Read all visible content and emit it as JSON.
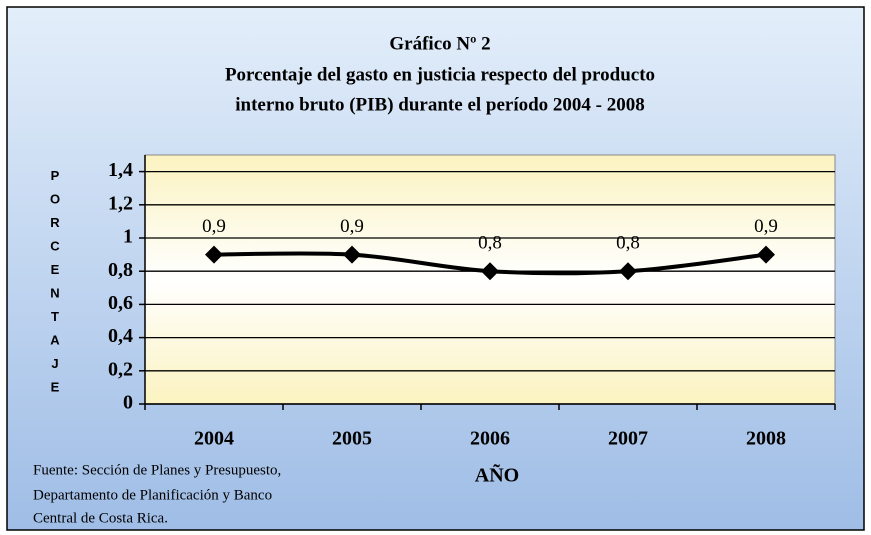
{
  "chart_data": {
    "type": "line",
    "title": "Gráfico Nº 2",
    "subtitle": [
      "Porcentaje del gasto en justicia respecto del producto",
      "interno bruto (PIB) durante el período 2004 - 2008"
    ],
    "y_label": "PORCENTAJE",
    "x_label": "AÑO",
    "categories": [
      "2004",
      "2005",
      "2006",
      "2007",
      "2008"
    ],
    "series": [
      {
        "name": "PIB",
        "color": "#000000",
        "values": [
          0.9,
          0.9,
          0.8,
          0.8,
          0.9
        ],
        "value_labels": [
          "0,9",
          "0,9",
          "0,8",
          "0,8",
          "0,9"
        ]
      }
    ],
    "ylim": [
      0,
      1.5
    ],
    "yticks": [
      0,
      {
        "value": 0.2,
        "label": "0,2"
      },
      {
        "value": 0.4,
        "label": "0,4"
      },
      {
        "value": 0.6,
        "label": "0,6"
      },
      {
        "value": 0.8,
        "label": "0,8"
      },
      1,
      {
        "value": 1.2,
        "label": "1,2"
      },
      {
        "value": 1.4,
        "label": "1,4"
      }
    ],
    "grid": true,
    "source": [
      "Fuente: Sección de Planes y Presupuesto,",
      "Departamento de Planificación  y Banco",
      "Central de Costa Rica."
    ]
  }
}
